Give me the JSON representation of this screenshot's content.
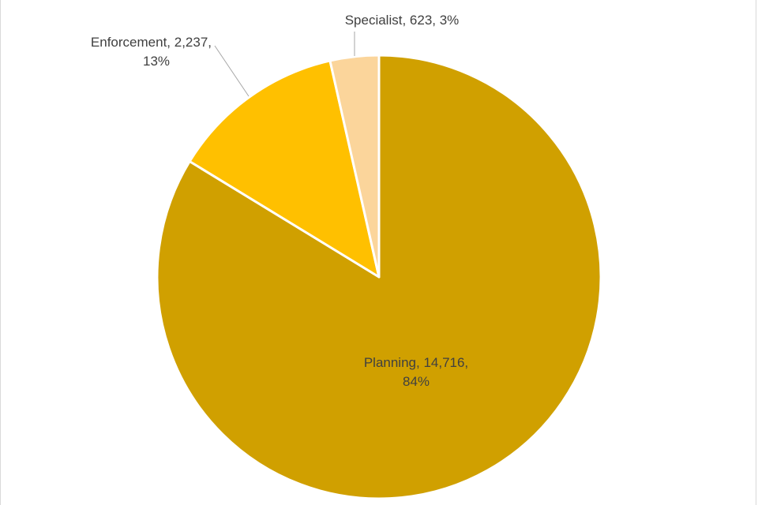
{
  "chart_data": {
    "type": "pie",
    "title": "",
    "slices": [
      {
        "name": "Planning",
        "value": 14716,
        "percent": 84,
        "color": "#d0a000",
        "label_lines": [
          "Planning, 14,716,",
          "84%"
        ]
      },
      {
        "name": "Enforcement",
        "value": 2237,
        "percent": 13,
        "color": "#ffc000",
        "label_lines": [
          "Enforcement, 2,237,",
          "13%"
        ]
      },
      {
        "name": "Specialist",
        "value": 623,
        "percent": 3,
        "color": "#fbd59b",
        "label_lines": [
          "Specialist, 623, 3%"
        ]
      }
    ],
    "start_angle_deg": 0,
    "direction": "clockwise",
    "legend": "none",
    "data_labels": true,
    "leader_lines": true,
    "slice_border_color": "#ffffff"
  }
}
